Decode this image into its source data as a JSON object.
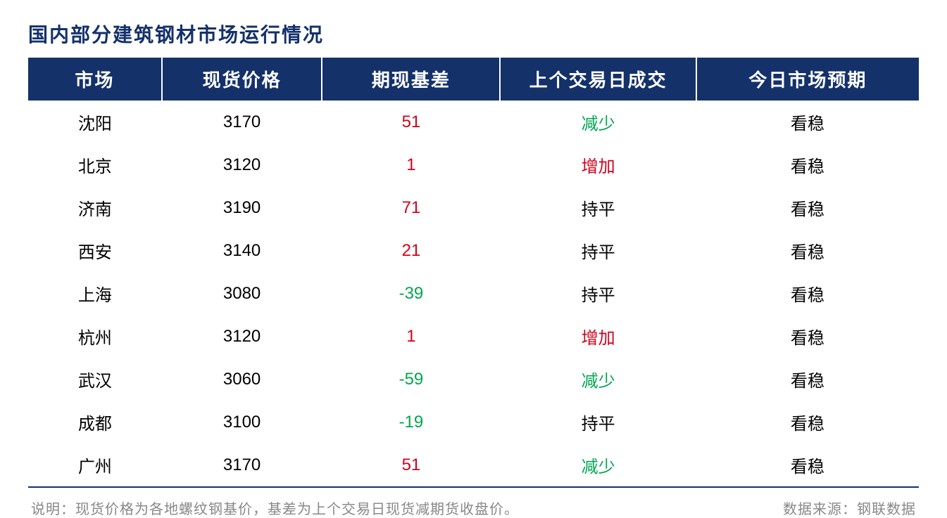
{
  "title": "国内部分建筑钢材市场运行情况",
  "columns": [
    "市场",
    "现货价格",
    "期现基差",
    "上个交易日成交",
    "今日市场预期"
  ],
  "colors": {
    "header_bg": "#14316a",
    "header_text": "#ffffff",
    "title_text": "#14316a",
    "pos": "#d0021b",
    "neg": "#00a651",
    "footnote": "#888888"
  },
  "font": {
    "title_size": 28,
    "header_size": 26,
    "cell_size": 24,
    "footnote_size": 20
  },
  "volume_labels": {
    "dec": "减少",
    "inc": "增加",
    "flat": "持平"
  },
  "rows": [
    {
      "market": "沈阳",
      "spot": "3170",
      "basis": "51",
      "basis_sign": "pos",
      "volume": "dec",
      "outlook": "看稳"
    },
    {
      "market": "北京",
      "spot": "3120",
      "basis": "1",
      "basis_sign": "pos",
      "volume": "inc",
      "outlook": "看稳"
    },
    {
      "market": "济南",
      "spot": "3190",
      "basis": "71",
      "basis_sign": "pos",
      "volume": "flat",
      "outlook": "看稳"
    },
    {
      "market": "西安",
      "spot": "3140",
      "basis": "21",
      "basis_sign": "pos",
      "volume": "flat",
      "outlook": "看稳"
    },
    {
      "market": "上海",
      "spot": "3080",
      "basis": "-39",
      "basis_sign": "neg",
      "volume": "flat",
      "outlook": "看稳"
    },
    {
      "market": "杭州",
      "spot": "3120",
      "basis": "1",
      "basis_sign": "pos",
      "volume": "inc",
      "outlook": "看稳"
    },
    {
      "market": "武汉",
      "spot": "3060",
      "basis": "-59",
      "basis_sign": "neg",
      "volume": "dec",
      "outlook": "看稳"
    },
    {
      "market": "成都",
      "spot": "3100",
      "basis": "-19",
      "basis_sign": "neg",
      "volume": "flat",
      "outlook": "看稳"
    },
    {
      "market": "广州",
      "spot": "3170",
      "basis": "51",
      "basis_sign": "pos",
      "volume": "dec",
      "outlook": "看稳"
    }
  ],
  "footnote_left": "说明：现货价格为各地螺纹钢基价，基差为上个交易日现货减期货收盘价。",
  "footnote_right": "数据来源：钢联数据"
}
